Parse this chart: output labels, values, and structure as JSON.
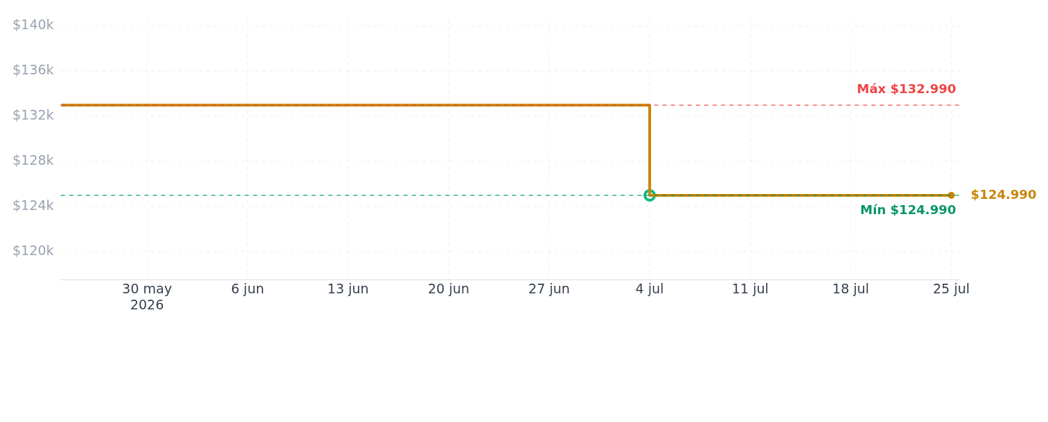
{
  "chart_data": {
    "type": "step",
    "xlim": [
      "2026-05-24",
      "2026-07-25T15:00"
    ],
    "xticks": [
      {
        "value": "2026-05-30",
        "label": "30 may\n2026"
      },
      {
        "value": "2026-06-06",
        "label": "6 jun"
      },
      {
        "value": "2026-06-13",
        "label": "13 jun"
      },
      {
        "value": "2026-06-20",
        "label": "20 jun"
      },
      {
        "value": "2026-06-27",
        "label": "27 jun"
      },
      {
        "value": "2026-07-04",
        "label": "4 jul"
      },
      {
        "value": "2026-07-11",
        "label": "11 jul"
      },
      {
        "value": "2026-07-18",
        "label": "18 jul"
      },
      {
        "value": "2026-07-25",
        "label": "25 jul"
      }
    ],
    "ylim": [
      117500,
      140500
    ],
    "yticks": [
      {
        "value": 120000,
        "label": "$120k"
      },
      {
        "value": 124000,
        "label": "$124k"
      },
      {
        "value": 128000,
        "label": "$128k"
      },
      {
        "value": 132000,
        "label": "$132k"
      },
      {
        "value": 136000,
        "label": "$136k"
      },
      {
        "value": 140000,
        "label": "$140k"
      }
    ],
    "grid": true,
    "legend": false,
    "series": [
      {
        "color": "#c8860a",
        "x": [
          "2026-05-24",
          "2026-07-04",
          "2026-07-25"
        ],
        "values": [
          132990,
          124990,
          124990
        ]
      },
      {
        "type": "scatter",
        "colors": [
          "#10b981",
          "#c8860a"
        ],
        "x": [
          "2026-07-04",
          "2026-07-25"
        ],
        "values": [
          124990,
          124990
        ]
      }
    ],
    "ref_lines": [
      {
        "axis": "y",
        "value": 132990,
        "label": "Máx $132.990",
        "color": "#ef4444",
        "line_style": "dashed"
      },
      {
        "axis": "y",
        "value": 124990,
        "label": "Mín $124.990",
        "color": "#059669",
        "line_style": "dashed"
      }
    ],
    "annotations": [
      {
        "text": "$124.990",
        "x": "2026-07-25",
        "y": 124990
      }
    ]
  }
}
